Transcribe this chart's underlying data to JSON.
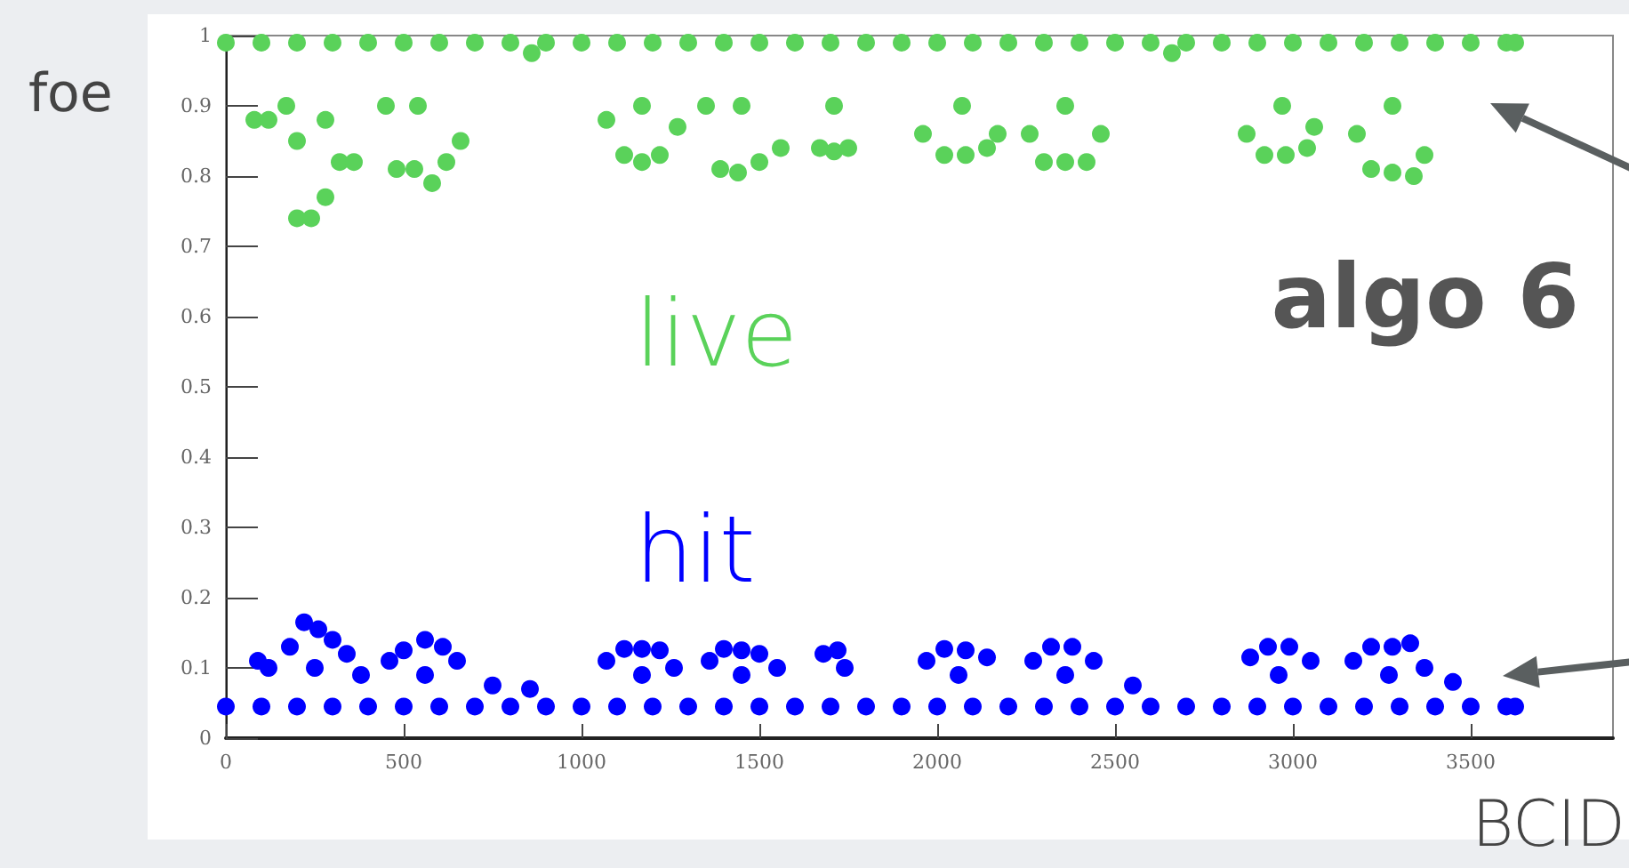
{
  "chart_data": {
    "type": "scatter",
    "xlabel": "BCID",
    "ylabel": "foe",
    "annotations": [
      "algo 6"
    ],
    "xlim": [
      0,
      3900
    ],
    "ylim": [
      0,
      1
    ],
    "xticks": [
      0,
      500,
      1000,
      1500,
      2000,
      2500,
      3000,
      3500
    ],
    "yticks": [
      0,
      0.1,
      0.2,
      0.3,
      0.4,
      0.5,
      0.6,
      0.7,
      0.8,
      0.9,
      1
    ],
    "legend": false,
    "grid": false,
    "marker": "circle",
    "series": [
      {
        "name": "live",
        "color": "#5ad25a",
        "x": [
          0,
          100,
          200,
          300,
          400,
          500,
          600,
          700,
          800,
          900,
          1000,
          1100,
          1200,
          1300,
          1400,
          1500,
          1600,
          1700,
          1800,
          1900,
          2000,
          2100,
          2200,
          2300,
          2400,
          2500,
          2600,
          2700,
          2800,
          2900,
          3000,
          3100,
          3200,
          3300,
          3400,
          3500,
          3600,
          3625,
          80,
          120,
          170,
          200,
          240,
          280,
          320,
          360,
          200,
          280,
          450,
          480,
          530,
          580,
          620,
          660,
          540,
          860,
          1070,
          1120,
          1170,
          1220,
          1270,
          1170,
          1350,
          1390,
          1440,
          1500,
          1560,
          1450,
          1670,
          1710,
          1750,
          1710,
          1960,
          2020,
          2080,
          2140,
          2170,
          2070,
          2260,
          2300,
          2360,
          2420,
          2460,
          2360,
          2660,
          2870,
          2920,
          2980,
          3040,
          3060,
          2970,
          3180,
          3220,
          3280,
          3340,
          3370,
          3280
        ],
        "values": [
          0.99,
          0.99,
          0.99,
          0.99,
          0.99,
          0.99,
          0.99,
          0.99,
          0.99,
          0.99,
          0.99,
          0.99,
          0.99,
          0.99,
          0.99,
          0.99,
          0.99,
          0.99,
          0.99,
          0.99,
          0.99,
          0.99,
          0.99,
          0.99,
          0.99,
          0.99,
          0.99,
          0.99,
          0.99,
          0.99,
          0.99,
          0.99,
          0.99,
          0.99,
          0.99,
          0.99,
          0.99,
          0.99,
          0.88,
          0.88,
          0.9,
          0.74,
          0.74,
          0.77,
          0.82,
          0.82,
          0.85,
          0.88,
          0.9,
          0.81,
          0.81,
          0.79,
          0.82,
          0.85,
          0.9,
          0.975,
          0.88,
          0.83,
          0.82,
          0.83,
          0.87,
          0.9,
          0.9,
          0.81,
          0.805,
          0.82,
          0.84,
          0.9,
          0.84,
          0.835,
          0.84,
          0.9,
          0.86,
          0.83,
          0.83,
          0.84,
          0.86,
          0.9,
          0.86,
          0.82,
          0.82,
          0.82,
          0.86,
          0.9,
          0.975,
          0.86,
          0.83,
          0.83,
          0.84,
          0.87,
          0.9,
          0.86,
          0.81,
          0.805,
          0.8,
          0.83,
          0.9
        ]
      },
      {
        "name": "hit",
        "color": "#0000ff",
        "x": [
          0,
          100,
          200,
          300,
          400,
          500,
          600,
          700,
          800,
          900,
          1000,
          1100,
          1200,
          1300,
          1400,
          1500,
          1600,
          1700,
          1800,
          1900,
          2000,
          2100,
          2200,
          2300,
          2400,
          2500,
          2600,
          2700,
          2800,
          2900,
          3000,
          3100,
          3200,
          3300,
          3400,
          3500,
          3600,
          3625,
          90,
          120,
          180,
          220,
          260,
          300,
          340,
          380,
          250,
          460,
          500,
          560,
          610,
          650,
          560,
          750,
          855,
          1070,
          1120,
          1170,
          1220,
          1260,
          1170,
          1360,
          1400,
          1450,
          1500,
          1550,
          1450,
          1680,
          1720,
          1740,
          1970,
          2020,
          2080,
          2140,
          2060,
          2270,
          2320,
          2380,
          2440,
          2360,
          2550,
          2880,
          2930,
          2990,
          3050,
          2960,
          3170,
          3220,
          3280,
          3330,
          3370,
          3270,
          3450
        ],
        "values": [
          0.045,
          0.045,
          0.045,
          0.045,
          0.045,
          0.045,
          0.045,
          0.045,
          0.045,
          0.045,
          0.045,
          0.045,
          0.045,
          0.045,
          0.045,
          0.045,
          0.045,
          0.045,
          0.045,
          0.045,
          0.045,
          0.045,
          0.045,
          0.045,
          0.045,
          0.045,
          0.045,
          0.045,
          0.045,
          0.045,
          0.045,
          0.045,
          0.045,
          0.045,
          0.045,
          0.045,
          0.045,
          0.045,
          0.11,
          0.1,
          0.13,
          0.165,
          0.155,
          0.14,
          0.12,
          0.09,
          0.1,
          0.11,
          0.125,
          0.14,
          0.13,
          0.11,
          0.09,
          0.075,
          0.07,
          0.11,
          0.127,
          0.127,
          0.125,
          0.1,
          0.09,
          0.11,
          0.127,
          0.125,
          0.12,
          0.1,
          0.09,
          0.12,
          0.125,
          0.1,
          0.11,
          0.127,
          0.125,
          0.115,
          0.09,
          0.11,
          0.13,
          0.13,
          0.11,
          0.09,
          0.075,
          0.115,
          0.13,
          0.13,
          0.11,
          0.09,
          0.11,
          0.13,
          0.13,
          0.135,
          0.1,
          0.09,
          0.08
        ]
      }
    ]
  }
}
